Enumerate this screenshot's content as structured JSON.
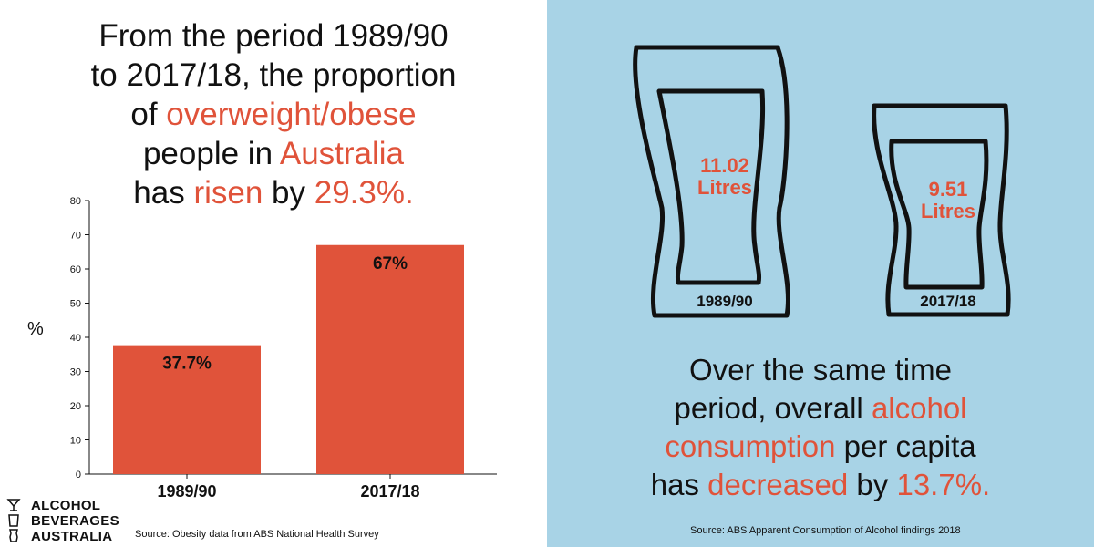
{
  "left": {
    "headline": {
      "line1": "From the period 1989/90",
      "line2": "to 2017/18, the proportion",
      "line3_pre": "of ",
      "line3_hl": "overweight/obese",
      "line4_pre": "people in ",
      "line4_hl": "Australia",
      "line5_pre": "has ",
      "line5_hl": "risen",
      "line5_mid": " by ",
      "line5_hl2": "29.3%."
    },
    "y_unit": "%",
    "source": "Source: Obesity data from ABS National Health Survey"
  },
  "logo": {
    "line1": "ALCOHOL",
    "line2": "BEVERAGES",
    "line3": "AUSTRALIA"
  },
  "right": {
    "glass1": {
      "value": "11.02",
      "unit": "Litres",
      "year": "1989/90"
    },
    "glass2": {
      "value": "9.51",
      "unit": "Litres",
      "year": "2017/18"
    },
    "subtext": {
      "line1": "Over the same time",
      "line2_pre": "period, overall ",
      "line2_hl": "alcohol",
      "line3_hl": "consumption",
      "line3_post": " per capita",
      "line4_pre": "has ",
      "line4_hl": "decreased",
      "line4_mid": " by ",
      "line4_hl2": "13.7%."
    },
    "source": "Source: ABS Apparent Consumption of Alcohol findings 2018"
  },
  "colors": {
    "accent": "#e0533a",
    "panel_blue": "#a8d3e6",
    "bar": "#e0533a",
    "text": "#111111"
  },
  "chart_data": {
    "type": "bar",
    "categories": [
      "1989/90",
      "2017/18"
    ],
    "values": [
      37.7,
      67
    ],
    "data_labels": [
      "37.7%",
      "67%"
    ],
    "ylabel": "%",
    "ylim": [
      0,
      80
    ],
    "yticks": [
      0,
      10,
      20,
      30,
      40,
      50,
      60,
      70,
      80
    ],
    "grid": false,
    "legend": "none"
  }
}
